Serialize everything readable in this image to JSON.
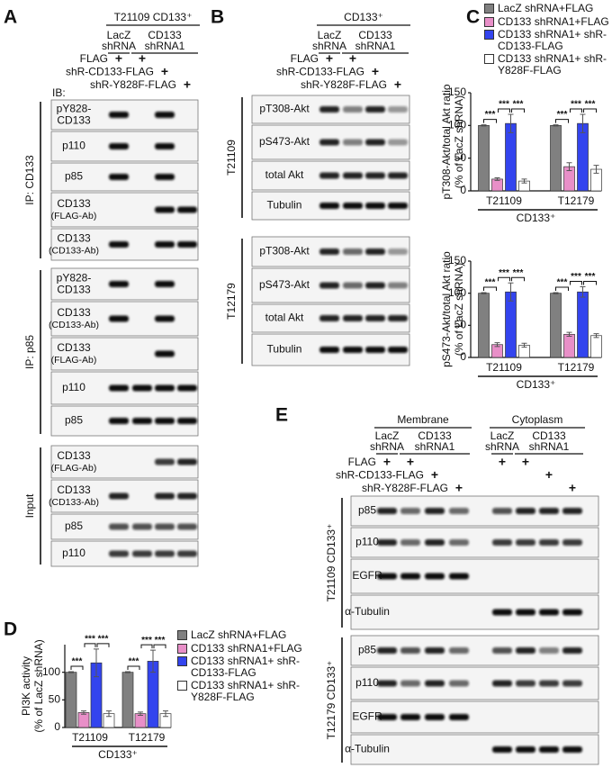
{
  "panels": {
    "A": {
      "label": "A",
      "header": [
        {
          "text": "T21109 CD133⁺",
          "groups": [
            {
              "line1": "LacZ",
              "line2": "shRNA"
            },
            {
              "line1": "CD133",
              "line2": "shRNA1"
            }
          ]
        }
      ],
      "conditions": [
        {
          "name": "FLAG",
          "marks": [
            "+",
            "+",
            null,
            null
          ]
        },
        {
          "name": "shR-CD133-FLAG",
          "marks": [
            null,
            null,
            "+",
            null
          ]
        },
        {
          "name": "shR-Y828F-FLAG",
          "marks": [
            null,
            null,
            null,
            "+"
          ]
        }
      ],
      "ib_label": "IB:",
      "sections": [
        {
          "name": "IP: CD133",
          "rows": [
            {
              "name": "pY828-",
              "sub": "CD133"
            },
            {
              "name": "p110"
            },
            {
              "name": "p85"
            },
            {
              "name": "CD133",
              "sub": "(FLAG-Ab)"
            },
            {
              "name": "CD133",
              "sub": "(CD133-Ab)"
            }
          ]
        },
        {
          "name": "IP: p85",
          "rows": [
            {
              "name": "pY828-",
              "sub": "CD133"
            },
            {
              "name": "CD133",
              "sub": "(CD133-Ab)"
            },
            {
              "name": "CD133",
              "sub": "(FLAG-Ab)"
            },
            {
              "name": "p110"
            },
            {
              "name": "p85"
            }
          ]
        },
        {
          "name": "Input",
          "rows": [
            {
              "name": "CD133",
              "sub": "(FLAG-Ab)"
            },
            {
              "name": "CD133",
              "sub": "(CD133-Ab)"
            },
            {
              "name": "p85"
            },
            {
              "name": "p110"
            }
          ]
        }
      ]
    },
    "B": {
      "label": "B",
      "header": [
        {
          "text": "CD133⁺",
          "groups": [
            {
              "line1": "LacZ",
              "line2": "shRNA"
            },
            {
              "line1": "CD133",
              "line2": "shRNA1"
            }
          ]
        }
      ],
      "conditions": [
        {
          "name": "FLAG",
          "marks": [
            "+",
            "+",
            null,
            null
          ]
        },
        {
          "name": "shR-CD133-FLAG",
          "marks": [
            null,
            null,
            "+",
            null
          ]
        },
        {
          "name": "shR-Y828F-FLAG",
          "marks": [
            null,
            null,
            null,
            "+"
          ]
        }
      ],
      "sections": [
        {
          "name": "T21109",
          "rows": [
            {
              "name": "pT308-Akt"
            },
            {
              "name": "pS473-Akt"
            },
            {
              "name": "total Akt"
            },
            {
              "name": "Tubulin"
            }
          ]
        },
        {
          "name": "T12179",
          "rows": [
            {
              "name": "pT308-Akt"
            },
            {
              "name": "pS473-Akt"
            },
            {
              "name": "total Akt"
            },
            {
              "name": "Tubulin"
            }
          ]
        }
      ]
    },
    "E": {
      "label": "E",
      "header": [
        {
          "text": "Membrane",
          "groups": [
            {
              "line1": "LacZ",
              "line2": "shRNA"
            },
            {
              "line1": "CD133",
              "line2": "shRNA1"
            }
          ]
        },
        {
          "text": "Cytoplasm",
          "groups": [
            {
              "line1": "LacZ",
              "line2": "shRNA"
            },
            {
              "line1": "CD133",
              "line2": "shRNA1"
            }
          ]
        }
      ],
      "conditions": [
        {
          "name": "FLAG",
          "marks": [
            "+",
            "+",
            null,
            null,
            "+",
            "+",
            null,
            null
          ]
        },
        {
          "name": "shR-CD133-FLAG",
          "marks": [
            null,
            null,
            "+",
            null,
            null,
            null,
            "+",
            null
          ]
        },
        {
          "name": "shR-Y828F-FLAG",
          "marks": [
            null,
            null,
            null,
            "+",
            null,
            null,
            null,
            "+"
          ]
        }
      ],
      "sections": [
        {
          "name": "T21109 CD133⁺",
          "rows": [
            {
              "name": "p85"
            },
            {
              "name": "p110"
            },
            {
              "name": "EGFR"
            },
            {
              "name": "α-Tubulin"
            }
          ]
        },
        {
          "name": "T12179 CD133⁺",
          "rows": [
            {
              "name": "p85"
            },
            {
              "name": "p110"
            },
            {
              "name": "EGFR"
            },
            {
              "name": "α-Tubulin"
            }
          ]
        }
      ]
    }
  },
  "chart_data": [
    {
      "type": "bar",
      "label": "C",
      "ylabel": "pT308-Akt/total Akt ratio",
      "ylabel_2": "(% of LacZ shRNA)",
      "categories": [
        "T21109",
        "T12179"
      ],
      "group_label": "CD133⁺",
      "ylim": [
        0,
        150
      ],
      "yticks": [
        0,
        50,
        100,
        150
      ],
      "legend": "top",
      "series": [
        {
          "name": "LacZ shRNA+FLAG",
          "color": "#808080",
          "values": [
            100,
            100
          ],
          "errors": [
            1,
            1
          ]
        },
        {
          "name": "CD133 shRNA1+FLAG",
          "color": "#e88fc8",
          "values": [
            18,
            37
          ],
          "errors": [
            2,
            6
          ]
        },
        {
          "name": "CD133 shRNA1+ shR-CD133-FLAG",
          "color": "#3344ee",
          "values": [
            103,
            103
          ],
          "errors": [
            14,
            14
          ]
        },
        {
          "name": "CD133 shRNA1+ shR-Y828F-FLAG",
          "color": "#ffffff",
          "values": [
            15,
            33
          ],
          "errors": [
            3,
            6
          ]
        }
      ],
      "significance": [
        "***",
        "***",
        "***",
        "***",
        "***",
        "***"
      ]
    },
    {
      "type": "bar",
      "ylabel": "pS473-Akt/total Akt ratio",
      "ylabel_2": "(% of LacZ shRNA)",
      "categories": [
        "T21109",
        "T12179"
      ],
      "group_label": "CD133⁺",
      "ylim": [
        0,
        150
      ],
      "yticks": [
        0,
        50,
        100,
        150
      ],
      "series": [
        {
          "color": "#808080",
          "values": [
            100,
            100
          ],
          "errors": [
            1,
            1
          ]
        },
        {
          "color": "#e88fc8",
          "values": [
            20,
            36
          ],
          "errors": [
            3,
            3
          ]
        },
        {
          "color": "#3344ee",
          "values": [
            102,
            102
          ],
          "errors": [
            14,
            8
          ]
        },
        {
          "color": "#ffffff",
          "values": [
            19,
            34
          ],
          "errors": [
            3,
            3
          ]
        }
      ],
      "significance": [
        "***",
        "***",
        "***",
        "***",
        "***",
        "***"
      ]
    },
    {
      "type": "bar",
      "label": "D",
      "ylabel": "PI3K activity",
      "ylabel_2": "(% of LacZ shRNA)",
      "categories": [
        "T21109",
        "T12179"
      ],
      "group_label": "CD133⁺",
      "ylim": [
        0,
        150
      ],
      "yticks": [
        0,
        50,
        100
      ],
      "legend": "right",
      "series": [
        {
          "name": "LacZ shRNA+FLAG",
          "color": "#808080",
          "values": [
            100,
            100
          ],
          "errors": [
            1,
            1
          ]
        },
        {
          "name": "CD133 shRNA1+FLAG",
          "color": "#e88fc8",
          "values": [
            27,
            25
          ],
          "errors": [
            3,
            3
          ]
        },
        {
          "name": "CD133 shRNA1+ shR-CD133-FLAG",
          "color": "#3344ee",
          "values": [
            117,
            120
          ],
          "errors": [
            25,
            20
          ]
        },
        {
          "name": "CD133 shRNA1+ shR-Y828F-FLAG",
          "color": "#ffffff",
          "values": [
            25,
            25
          ],
          "errors": [
            5,
            5
          ]
        }
      ],
      "significance": [
        "***",
        "***",
        "***",
        "***",
        "***",
        "***"
      ]
    }
  ]
}
